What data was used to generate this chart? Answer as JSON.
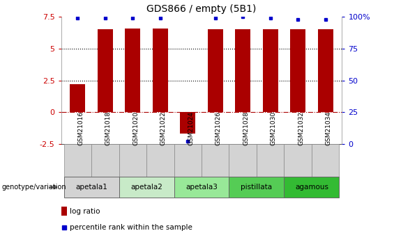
{
  "title": "GDS866 / empty (5B1)",
  "samples": [
    "GSM21016",
    "GSM21018",
    "GSM21020",
    "GSM21022",
    "GSM21024",
    "GSM21026",
    "GSM21028",
    "GSM21030",
    "GSM21032",
    "GSM21034"
  ],
  "log_ratios": [
    2.2,
    6.5,
    6.6,
    6.6,
    -1.7,
    6.5,
    6.5,
    6.5,
    6.5,
    6.5
  ],
  "percentile_ranks": [
    99,
    99,
    99,
    99,
    2,
    99,
    100,
    99,
    98,
    98
  ],
  "bar_color": "#aa0000",
  "dot_color": "#0000cc",
  "ylim_left": [
    -2.5,
    7.5
  ],
  "ylim_right": [
    0,
    100
  ],
  "yticks_left": [
    -2.5,
    0,
    2.5,
    5,
    7.5
  ],
  "ytick_labels_left": [
    "-2.5",
    "0",
    "2.5",
    "5",
    "7.5"
  ],
  "yticks_right": [
    0,
    25,
    50,
    75,
    100
  ],
  "ytick_labels_right": [
    "0",
    "25",
    "50",
    "75",
    "100%"
  ],
  "hlines": [
    0,
    2.5,
    5
  ],
  "hline_styles": [
    "dashdot",
    "dotted",
    "dotted"
  ],
  "hline_colors": [
    "#aa0000",
    "#000000",
    "#000000"
  ],
  "groups_info": [
    {
      "label": "apetala1",
      "start": 0,
      "end": 1,
      "color": "#d3d3d3"
    },
    {
      "label": "apetala2",
      "start": 2,
      "end": 3,
      "color": "#c8eac8"
    },
    {
      "label": "apetala3",
      "start": 4,
      "end": 5,
      "color": "#98e898"
    },
    {
      "label": "pistillata",
      "start": 6,
      "end": 7,
      "color": "#55cc55"
    },
    {
      "label": "agamous",
      "start": 8,
      "end": 9,
      "color": "#33bb33"
    }
  ],
  "sample_box_color": "#d3d3d3",
  "sample_box_edge": "#888888",
  "legend_bar_label": "log ratio",
  "legend_dot_label": "percentile rank within the sample",
  "genotype_label": "genotype/variation"
}
